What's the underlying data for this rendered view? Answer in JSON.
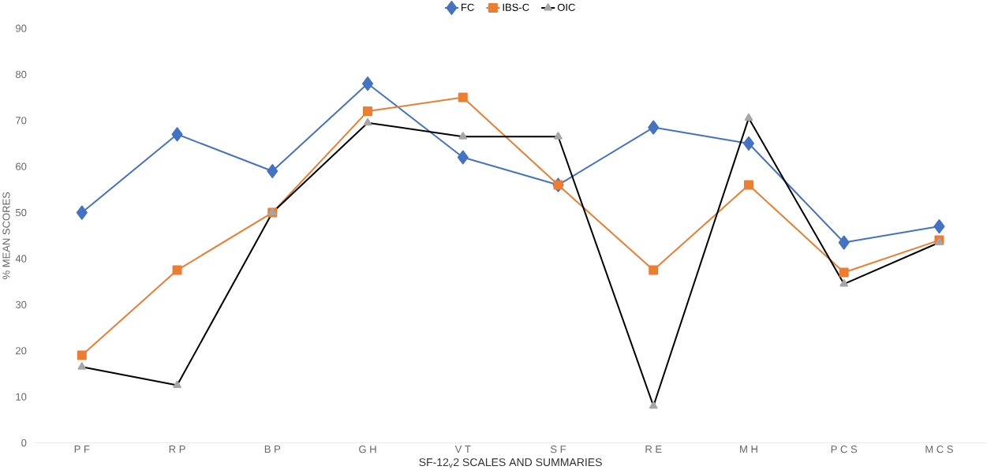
{
  "chart_data": {
    "type": "line",
    "xlabel": "SF-12$_{v}$2 SCALES AND SUMMARIES",
    "ylabel": "% MEAN SCORES",
    "categories": [
      "P F",
      "R P",
      "B P",
      "G H",
      "V T",
      "S F",
      "R E",
      "M H",
      "P C S",
      "M C S"
    ],
    "series": [
      {
        "name": "FC",
        "color": "#4472c4",
        "marker": "diamond",
        "values": [
          50,
          67,
          59,
          78,
          62,
          56,
          68.5,
          65,
          43.5,
          47
        ]
      },
      {
        "name": "IBS-C",
        "color": "#ed7d31",
        "marker": "square",
        "values": [
          19,
          37.5,
          50,
          72,
          75,
          56,
          37.5,
          56,
          37,
          44
        ]
      },
      {
        "name": "OIC",
        "color": "#000000",
        "marker": "triangle",
        "values": [
          16.5,
          12.5,
          50,
          69.5,
          66.5,
          66.5,
          8,
          70.5,
          34.5,
          43.5
        ]
      }
    ],
    "ylim": [
      0,
      90
    ],
    "yticks": [
      0,
      10,
      20,
      30,
      40,
      50,
      60,
      70,
      80,
      90
    ],
    "grid": false,
    "legend": "top",
    "line_style": "solid"
  }
}
